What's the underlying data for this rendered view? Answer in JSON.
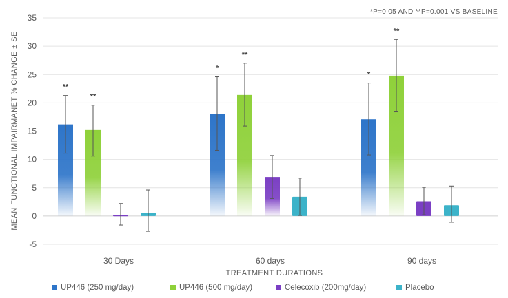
{
  "chart_data": {
    "type": "bar",
    "annotation": "*P=0.05 AND **P=0.001 VS BASELINE",
    "xlabel": "TREATMENT DURATIONS",
    "ylabel": "MEAN FUNCTIONAL IMPAIRMANET % CHANGE ± SE",
    "ylim": [
      -5,
      35
    ],
    "yticks": [
      -5,
      0,
      5,
      10,
      15,
      20,
      25,
      30,
      35
    ],
    "grid": true,
    "legend_position": "bottom",
    "categories": [
      "30 Days",
      "60 days",
      "90 days"
    ],
    "series": [
      {
        "name": "UP446 (250 mg/day)",
        "color": "#2e75c9",
        "values": [
          16.2,
          18.1,
          17.1
        ],
        "err_low": [
          11.1,
          11.6,
          10.8
        ],
        "err_high": [
          21.3,
          24.6,
          23.5
        ],
        "significance": [
          "**",
          "*",
          "*"
        ]
      },
      {
        "name": "UP446 (500 mg/day)",
        "color": "#8fd13a",
        "values": [
          15.2,
          21.4,
          24.8
        ],
        "err_low": [
          10.6,
          15.9,
          18.4
        ],
        "err_high": [
          19.6,
          27.0,
          31.2
        ],
        "significance": [
          "**",
          "**",
          "**"
        ]
      },
      {
        "name": "Celecoxib (200mg/day)",
        "color": "#7b3fc4",
        "values": [
          0.2,
          6.9,
          2.6
        ],
        "err_low": [
          -1.6,
          3.1,
          0.2
        ],
        "err_high": [
          2.2,
          10.7,
          5.1
        ],
        "significance": [
          "",
          "",
          ""
        ]
      },
      {
        "name": "Placebo",
        "color": "#3cb3c9",
        "values": [
          0.6,
          3.4,
          1.9
        ],
        "err_low": [
          -2.7,
          0.1,
          -1.1
        ],
        "err_high": [
          4.6,
          6.7,
          5.3
        ],
        "significance": [
          "",
          "",
          ""
        ]
      }
    ]
  }
}
